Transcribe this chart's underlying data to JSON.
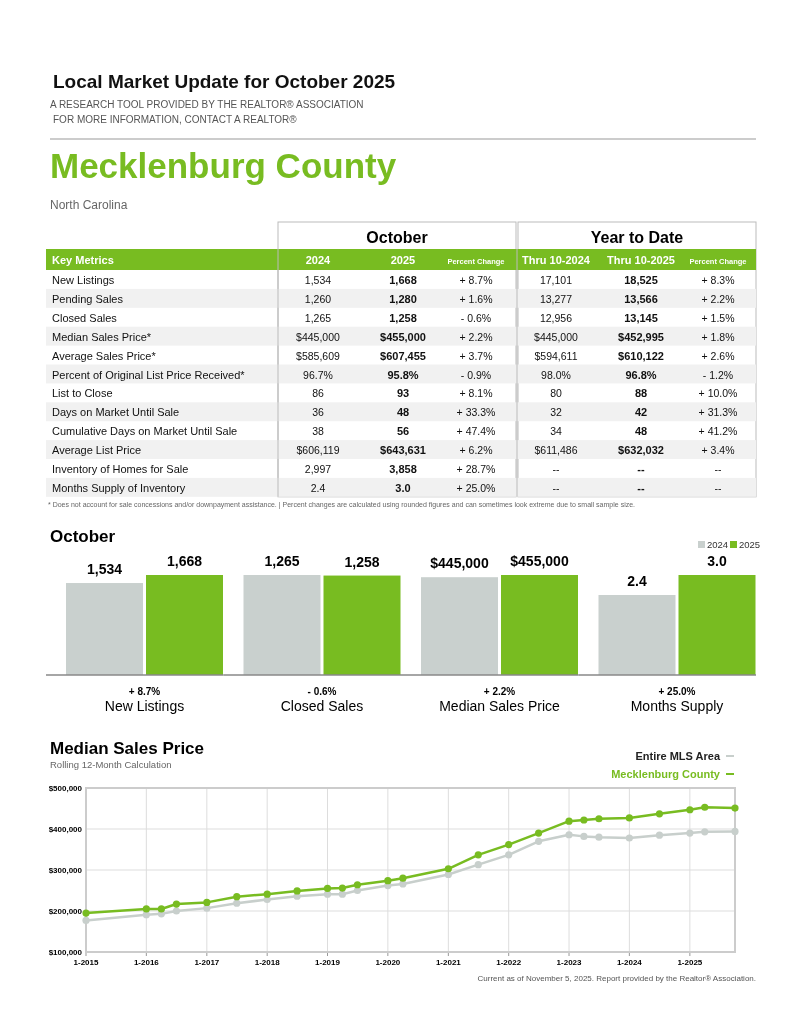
{
  "chart_data": [
    {
      "type": "other",
      "title": "Local Market Update for October 2025",
      "subtitle": "A RESEARCH TOOL PROVIDED BY THE REALTOR® ASSOCIATION",
      "annotations": [
        "FOR MORE INFORMATION, CONTACT A REALTOR®",
        "Mecklenburg County",
        "North Carolina"
      ]
    },
    {
      "type": "other",
      "categories": [
        "Key Metrics",
        "2024",
        "2025",
        "Percent Change",
        "Thru 10-2024",
        "Thru 10-2025",
        "Percent Change"
      ],
      "y_categories": [
        "New Listings",
        "Pending Sales",
        "Closed Sales",
        "Median Sales Price*",
        "Average Sales Price*",
        "Percent of Original List Price Received*",
        "List to Close",
        "Days on Market Until Sale",
        "Cumulative Days on Market Until Sale",
        "Average List Price",
        "Inventory of Homes for Sale",
        "Months Supply of Inventory"
      ],
      "cell_labels": [
        [
          "1,534",
          "1,668",
          "+ 8.7%",
          "17,101",
          "18,525",
          "+ 8.3%"
        ],
        [
          "1,260",
          "1,280",
          "+ 1.6%",
          "13,277",
          "13,566",
          "+ 2.2%"
        ],
        [
          "1,265",
          "1,258",
          "- 0.6%",
          "12,956",
          "13,145",
          "+ 1.5%"
        ],
        [
          "$445,000",
          "$455,000",
          "+ 2.2%",
          "$445,000",
          "$452,995",
          "+ 1.8%"
        ],
        [
          "$585,609",
          "$607,455",
          "+ 3.7%",
          "$594,611",
          "$610,122",
          "+ 2.6%"
        ],
        [
          "96.7%",
          "95.8%",
          "- 0.9%",
          "98.0%",
          "96.8%",
          "- 1.2%"
        ],
        [
          "86",
          "93",
          "+ 8.1%",
          "80",
          "88",
          "+ 10.0%"
        ],
        [
          "36",
          "48",
          "+ 33.3%",
          "32",
          "42",
          "+ 31.3%"
        ],
        [
          "38",
          "56",
          "+ 47.4%",
          "34",
          "48",
          "+ 41.2%"
        ],
        [
          "$606,119",
          "$643,631",
          "+ 6.2%",
          "$611,486",
          "$632,032",
          "+ 3.4%"
        ],
        [
          "2,997",
          "3,858",
          "+ 28.7%",
          "--",
          "--",
          "--"
        ],
        [
          "2.4",
          "3.0",
          "+ 25.0%",
          "--",
          "--",
          "--"
        ]
      ],
      "annotations": [
        "October",
        "Year to Date",
        "* Does not account for sale concessions and/or downpayment assistance.  |  Percent changes are calculated using rounded figures and can sometimes look extreme due to small sample size."
      ]
    },
    {
      "type": "bar",
      "title": "October",
      "xlabel": "New Listings",
      "annotations": [
        "+ 8.7%"
      ],
      "categories": [
        null,
        null
      ],
      "values": [
        1534,
        1668
      ],
      "colors": [
        "#c9d0ce",
        "#78bc21"
      ],
      "value_labels": [
        "1,534",
        "1,668"
      ]
    },
    {
      "type": "bar",
      "xlabel": "Closed Sales",
      "annotations": [
        "- 0.6%"
      ],
      "categories": [
        null,
        null
      ],
      "values": [
        1265,
        1258
      ],
      "colors": [
        "#c9d0ce",
        "#78bc21"
      ],
      "value_labels": [
        "1,265",
        "1,258"
      ]
    },
    {
      "type": "bar",
      "xlabel": "Median Sales Price",
      "annotations": [
        "+ 2.2%"
      ],
      "categories": [
        null,
        null
      ],
      "values": [
        445000,
        455000
      ],
      "colors": [
        "#c9d0ce",
        "#78bc21"
      ],
      "value_labels": [
        "$445,000",
        "$455,000"
      ]
    },
    {
      "type": "bar",
      "xlabel": "Months Supply",
      "annotations": [
        "+ 25.0%"
      ],
      "categories": [
        null,
        null
      ],
      "values": [
        2.4,
        3.0
      ],
      "colors": [
        "#c9d0ce",
        "#78bc21"
      ],
      "value_labels": [
        "2.4",
        "3.0"
      ]
    },
    {
      "type": "other",
      "categories": [
        "2024",
        "2025"
      ],
      "colors": [
        "#c9d0ce",
        "#78bc21"
      ]
    },
    {
      "type": "line",
      "title": "Median Sales Price",
      "subtitle": "Rolling 12-Month Calculation",
      "legend": "top right",
      "grid": true,
      "marker": "circle",
      "line_style": "solid",
      "xlim": [
        "2015-01",
        "2025-10"
      ],
      "xticks": [
        {
          "value": "2015-01",
          "label": "1-2015"
        },
        {
          "value": "2016-01",
          "label": "1-2016"
        },
        {
          "value": "2017-01",
          "label": "1-2017"
        },
        {
          "value": "2018-01",
          "label": "1-2018"
        },
        {
          "value": "2019-01",
          "label": "1-2019"
        },
        {
          "value": "2020-01",
          "label": "1-2020"
        },
        {
          "value": "2021-01",
          "label": "1-2021"
        },
        {
          "value": "2022-01",
          "label": "1-2022"
        },
        {
          "value": "2023-01",
          "label": "1-2023"
        },
        {
          "value": "2024-01",
          "label": "1-2024"
        },
        {
          "value": "2025-01",
          "label": "1-2025"
        }
      ],
      "ylim": [
        100000,
        500000
      ],
      "yticks": [
        {
          "value": 100000,
          "label": "$100,000"
        },
        {
          "value": 200000,
          "label": "$200,000"
        },
        {
          "value": 300000,
          "label": "$300,000"
        },
        {
          "value": 400000,
          "label": "$400,000"
        },
        {
          "value": 500000,
          "label": "$500,000"
        }
      ],
      "x": [
        "2015-01",
        "2016-01",
        "2016-04",
        "2016-07",
        "2017-01",
        "2017-07",
        "2018-01",
        "2018-07",
        "2019-01",
        "2019-04",
        "2019-07",
        "2020-01",
        "2020-04",
        "2021-01",
        "2021-07",
        "2022-01",
        "2022-07",
        "2023-01",
        "2023-04",
        "2023-07",
        "2024-01",
        "2024-07",
        "2025-01",
        "2025-04",
        "2025-10"
      ],
      "series": [
        {
          "name": "Entire MLS Area",
          "color": "#c8cfcc",
          "values": [
            177000,
            191000,
            193000,
            200000,
            207000,
            219000,
            228000,
            236000,
            241000,
            241000,
            250000,
            262000,
            266000,
            289000,
            313000,
            337000,
            370000,
            386000,
            382000,
            380000,
            378000,
            385000,
            390000,
            393000,
            394000
          ]
        },
        {
          "name": "Mecklenburg County",
          "color": "#78bc21",
          "values": [
            195000,
            205000,
            205000,
            217000,
            221000,
            235000,
            241000,
            249000,
            255000,
            256000,
            264000,
            274000,
            280000,
            303000,
            337000,
            362000,
            390000,
            419000,
            422000,
            425000,
            427000,
            437000,
            447000,
            453000,
            451000
          ]
        }
      ],
      "annotations": [
        "Current as of November 5, 2025. Report provided by the Realtor® Association."
      ]
    }
  ]
}
